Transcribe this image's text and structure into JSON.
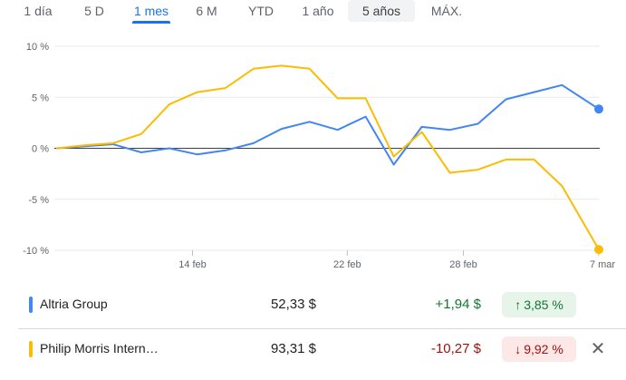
{
  "range_tabs": [
    {
      "label": "1 día"
    },
    {
      "label": "5 D"
    },
    {
      "label": "1 mes",
      "active": true
    },
    {
      "label": "6 M"
    },
    {
      "label": "YTD"
    },
    {
      "label": "1 año"
    },
    {
      "label": "5 años",
      "highlighted": true
    },
    {
      "label": "MÁX."
    }
  ],
  "chart_data": {
    "type": "line",
    "y_ticks": [
      "10 %",
      "5 %",
      "0 %",
      "-5 %",
      "-10 %"
    ],
    "y_tick_values": [
      10,
      5,
      0,
      -5,
      -10
    ],
    "ylim": [
      -10,
      10
    ],
    "x_ticks": [
      "14 feb",
      "22 feb",
      "28 feb",
      "7 mar"
    ],
    "x_tick_indices": [
      7,
      15,
      21,
      28
    ],
    "xlim": [
      0,
      28
    ],
    "grid": true,
    "series": [
      {
        "name": "Altria Group",
        "color": "#4285f4",
        "values": [
          0,
          0.2,
          0.4,
          -0.4,
          0.0,
          -0.6,
          -0.2,
          0.5,
          1.9,
          2.6,
          1.8,
          3.1,
          -1.6,
          2.1,
          1.8,
          2.4,
          4.8,
          5.5,
          6.2,
          3.85
        ]
      },
      {
        "name": "Philip Morris Intern…",
        "color": "#fbbc04",
        "values": [
          0,
          0.3,
          0.5,
          1.4,
          4.3,
          5.5,
          5.9,
          7.8,
          8.1,
          7.8,
          4.9,
          4.9,
          -0.8,
          1.6,
          -2.4,
          -2.1,
          -1.1,
          -1.1,
          -3.7,
          -9.92
        ]
      }
    ],
    "x_values": [
      0,
      1.45,
      2.9,
      4.35,
      5.8,
      7.25,
      8.7,
      10.15,
      11.6,
      13.05,
      14.5,
      15.95,
      17.4,
      18.85,
      20.3,
      21.75,
      23.2,
      24.65,
      26.1,
      28
    ]
  },
  "rows": [
    {
      "name": "Altria Group",
      "color": "#4285f4",
      "price": "52,33 $",
      "change": "+1,94 $",
      "change_color": "#137333",
      "percent": "3,85 %",
      "arrow": "↑",
      "badge_bg": "#e6f4ea",
      "badge_color": "#137333"
    },
    {
      "name": "Philip Morris Intern…",
      "color": "#fbbc04",
      "price": "93,31 $",
      "change": "-10,27 $",
      "change_color": "#a50e0e",
      "percent": "9,92 %",
      "arrow": "↓",
      "badge_bg": "#fce8e6",
      "badge_color": "#a50e0e",
      "close_icon": "close-icon"
    }
  ]
}
